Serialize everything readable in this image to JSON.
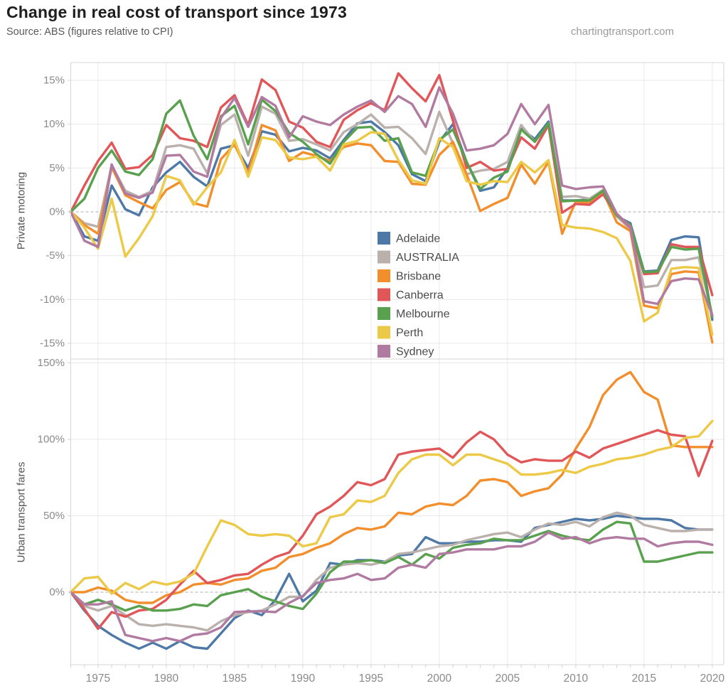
{
  "header": {
    "title": "Change in real cost of transport since 1973",
    "source": "Source: ABS (figures relative to CPI)",
    "watermark": "chartingtransport.com"
  },
  "palette": {
    "adelaide_blue": "#4e79a7",
    "australia_gray": "#bab0ac",
    "brisbane_orange": "#f28e2b",
    "canberra_red": "#e15759",
    "melbourne_green": "#59a14f",
    "perth_yellow": "#edc948",
    "sydney_purple": "#b07aa1",
    "grid": "#e8e8e8",
    "zero_line": "#bdbdbd",
    "border": "#d4d4d4",
    "tick_text": "#8a8a8a",
    "legend_text": "#4b4b4b"
  },
  "chart_data": [
    {
      "type": "line",
      "panel": "private-motoring",
      "ylabel": "Private motoring",
      "y_tick_labels": [
        "15%",
        "10%",
        "5%",
        "0%",
        "-5%",
        "-10%",
        "-15%"
      ],
      "y_tick_values": [
        15,
        10,
        5,
        0,
        -5,
        -10,
        -15
      ],
      "ylim": [
        -17,
        17
      ],
      "grid": true,
      "zero_line": "dashed",
      "legend_position": "inside-center-left",
      "x": [
        1973,
        1974,
        1975,
        1976,
        1977,
        1978,
        1979,
        1980,
        1981,
        1982,
        1983,
        1984,
        1985,
        1986,
        1987,
        1988,
        1989,
        1990,
        1991,
        1992,
        1993,
        1994,
        1995,
        1996,
        1997,
        1998,
        1999,
        2000,
        2001,
        2002,
        2003,
        2004,
        2005,
        2006,
        2007,
        2008,
        2009,
        2010,
        2011,
        2012,
        2013,
        2014,
        2015,
        2016,
        2017,
        2018,
        2019,
        2020
      ],
      "x_tick_labels": [
        "1975",
        "1980",
        "1985",
        "1990",
        "1995",
        "2000",
        "2005",
        "2010",
        "2015",
        "2020"
      ],
      "series": [
        {
          "name": "Adelaide",
          "color": "#4e79a7",
          "values": [
            0,
            -2.8,
            -3.3,
            3.0,
            0.3,
            -0.4,
            2.8,
            4.5,
            5.7,
            4.0,
            2.9,
            7.2,
            7.6,
            5.0,
            9.2,
            8.8,
            6.9,
            7.3,
            7.0,
            6.1,
            8.2,
            10.1,
            10.3,
            9.1,
            7.6,
            4.3,
            3.5,
            8.0,
            10.0,
            5.7,
            2.4,
            2.8,
            5.0,
            9.5,
            8.3,
            10.3,
            1.3,
            1.3,
            1.4,
            2.5,
            -0.5,
            -1.3,
            -6.8,
            -6.7,
            -3.2,
            -2.8,
            -2.9,
            -12.3
          ]
        },
        {
          "name": "AUSTRALIA",
          "color": "#bab0ac",
          "values": [
            0,
            -1.3,
            -1.7,
            5.3,
            2.4,
            1.7,
            2.4,
            7.4,
            7.6,
            7.2,
            4.4,
            9.9,
            11.1,
            6.4,
            12.0,
            11.2,
            8.1,
            8.3,
            7.7,
            7.0,
            9.1,
            10.0,
            11.1,
            9.6,
            9.7,
            8.4,
            6.6,
            11.4,
            7.8,
            4.3,
            4.7,
            4.9,
            5.7,
            9.9,
            8.0,
            10.0,
            1.7,
            1.8,
            1.5,
            2.5,
            -0.5,
            -2.0,
            -8.6,
            -8.4,
            -5.5,
            -5.5,
            -5.2,
            -11.8
          ]
        },
        {
          "name": "Brisbane",
          "color": "#f28e2b",
          "values": [
            0,
            -1.5,
            -2.5,
            5.1,
            1.9,
            1.1,
            0.4,
            2.5,
            3.4,
            1.0,
            0.6,
            6.0,
            7.7,
            4.4,
            9.9,
            9.3,
            5.8,
            6.8,
            6.4,
            5.8,
            7.4,
            7.8,
            7.6,
            5.8,
            5.7,
            3.2,
            3.1,
            6.5,
            8.0,
            4.3,
            0.1,
            0.9,
            1.6,
            5.4,
            3.2,
            5.7,
            -2.5,
            1.2,
            1.0,
            2.3,
            -1.2,
            -2.2,
            -10.7,
            -11.0,
            -7.1,
            -6.8,
            -6.9,
            -14.9
          ]
        },
        {
          "name": "Canberra",
          "color": "#e15759",
          "values": [
            0,
            3.0,
            5.8,
            7.9,
            4.9,
            5.1,
            6.5,
            9.9,
            8.4,
            8.1,
            7.4,
            11.9,
            13.3,
            9.9,
            15.1,
            13.9,
            10.3,
            9.6,
            8.0,
            7.4,
            10.5,
            11.6,
            12.4,
            11.6,
            15.8,
            14.1,
            12.6,
            15.6,
            10.4,
            5.0,
            5.7,
            4.7,
            4.9,
            8.5,
            7.2,
            9.9,
            -0.1,
            0.9,
            0.8,
            2.0,
            -0.3,
            -1.8,
            -7.1,
            -7.0,
            -3.7,
            -4.0,
            -4.0,
            -9.5
          ]
        },
        {
          "name": "Melbourne",
          "color": "#59a14f",
          "values": [
            0,
            1.5,
            5.0,
            7.0,
            4.6,
            4.2,
            6.0,
            11.2,
            12.7,
            8.7,
            6.0,
            10.9,
            12.1,
            7.7,
            12.8,
            11.5,
            9.0,
            8.0,
            6.6,
            5.5,
            8.0,
            9.6,
            9.7,
            8.1,
            8.4,
            4.5,
            4.1,
            8.2,
            9.4,
            5.7,
            2.6,
            3.9,
            4.6,
            9.4,
            8.0,
            10.1,
            1.2,
            1.3,
            1.3,
            2.4,
            -0.4,
            -1.5,
            -6.9,
            -6.8,
            -4.0,
            -4.3,
            -4.2,
            -12.0
          ]
        },
        {
          "name": "Perth",
          "color": "#edc948",
          "values": [
            0,
            -1.8,
            -4.2,
            1.5,
            -5.1,
            -3.0,
            -0.5,
            4.1,
            3.6,
            0.8,
            2.8,
            4.5,
            8.2,
            4.0,
            8.5,
            8.2,
            6.2,
            6.0,
            6.3,
            4.7,
            7.7,
            8.1,
            9.1,
            8.9,
            5.9,
            3.6,
            3.2,
            8.4,
            7.4,
            3.5,
            3.1,
            3.5,
            3.4,
            5.7,
            4.5,
            5.9,
            -1.5,
            -1.8,
            -1.9,
            -2.3,
            -3.0,
            -5.6,
            -12.5,
            -11.5,
            -6.5,
            -6.3,
            -6.4,
            -14.0
          ]
        },
        {
          "name": "Sydney",
          "color": "#b07aa1",
          "values": [
            0,
            -3.3,
            -4.0,
            5.4,
            2.1,
            1.6,
            2.2,
            6.4,
            6.5,
            4.6,
            4.0,
            10.7,
            13.0,
            9.7,
            13.1,
            12.1,
            8.5,
            10.9,
            10.3,
            9.9,
            11.1,
            12.0,
            12.7,
            11.4,
            13.2,
            12.3,
            9.7,
            14.2,
            11.2,
            7.0,
            7.2,
            7.6,
            8.9,
            12.3,
            10.0,
            12.2,
            3.0,
            2.6,
            2.8,
            2.9,
            -0.2,
            -1.7,
            -10.2,
            -10.5,
            -7.9,
            -7.6,
            -7.7,
            -11.8
          ]
        }
      ]
    },
    {
      "type": "line",
      "panel": "urban-transport-fares",
      "ylabel": "Urban transport fares",
      "y_tick_labels": [
        "150%",
        "100%",
        "50%",
        "0%"
      ],
      "y_tick_values": [
        150,
        100,
        50,
        0
      ],
      "ylim": [
        -47,
        152
      ],
      "grid": true,
      "zero_line": "dashed",
      "x": [
        1973,
        1974,
        1975,
        1976,
        1977,
        1978,
        1979,
        1980,
        1981,
        1982,
        1983,
        1984,
        1985,
        1986,
        1987,
        1988,
        1989,
        1990,
        1991,
        1992,
        1993,
        1994,
        1995,
        1996,
        1997,
        1998,
        1999,
        2000,
        2001,
        2002,
        2003,
        2004,
        2005,
        2006,
        2007,
        2008,
        2009,
        2010,
        2011,
        2012,
        2013,
        2014,
        2015,
        2016,
        2017,
        2018,
        2019,
        2020
      ],
      "x_tick_labels": [
        "1975",
        "1980",
        "1985",
        "1990",
        "1995",
        "2000",
        "2005",
        "2010",
        "2015",
        "2020"
      ],
      "series": [
        {
          "name": "Adelaide",
          "color": "#4e79a7",
          "values": [
            0,
            -12,
            -22,
            -28,
            -33,
            -37,
            -33,
            -37,
            -32,
            -36,
            -37,
            -27,
            -17,
            -12,
            -15,
            -5,
            12,
            -6,
            1,
            19,
            18,
            21,
            21,
            20,
            24,
            25,
            36,
            32,
            32,
            33,
            33,
            34,
            34,
            33,
            42,
            44,
            46,
            48,
            47,
            48,
            50,
            49,
            48,
            48,
            47,
            42,
            41,
            41
          ]
        },
        {
          "name": "AUSTRALIA",
          "color": "#bab0ac",
          "values": [
            0,
            -9,
            -12,
            -9,
            -15,
            -21,
            -22,
            -21,
            -22,
            -23,
            -25,
            -19,
            -15,
            -13,
            -12,
            -8,
            -3,
            -3,
            8,
            16,
            18,
            19,
            18,
            20,
            25,
            26,
            28,
            30,
            31,
            34,
            36,
            38,
            39,
            36,
            41,
            45,
            44,
            46,
            43,
            49,
            52,
            50,
            44,
            42,
            40,
            40,
            41,
            41
          ]
        },
        {
          "name": "Brisbane",
          "color": "#f28e2b",
          "values": [
            0,
            0,
            3,
            1,
            -5,
            -7,
            -7,
            -2,
            0,
            5,
            6,
            5,
            8,
            9,
            14,
            16,
            23,
            25,
            29,
            32,
            38,
            42,
            41,
            43,
            52,
            51,
            56,
            58,
            57,
            63,
            73,
            74,
            72,
            63,
            66,
            68,
            77,
            94,
            108,
            129,
            139,
            144,
            131,
            126,
            96,
            95,
            95,
            95
          ]
        },
        {
          "name": "Canberra",
          "color": "#e15759",
          "values": [
            0,
            -11,
            -24,
            -13,
            -16,
            -12,
            -11,
            -5,
            5,
            14,
            6,
            8,
            11,
            12,
            18,
            23,
            26,
            37,
            51,
            56,
            63,
            72,
            70,
            74,
            90,
            92,
            93,
            94,
            88,
            98,
            105,
            100,
            90,
            85,
            87,
            86,
            86,
            92,
            88,
            94,
            97,
            100,
            103,
            106,
            103,
            102,
            76,
            99
          ]
        },
        {
          "name": "Melbourne",
          "color": "#59a14f",
          "values": [
            0,
            -8,
            -5,
            -8,
            -12,
            -9,
            -12,
            -12,
            -11,
            -8,
            -9,
            -2,
            0,
            2,
            -3,
            -6,
            -9,
            -11,
            -1,
            13,
            20,
            20,
            21,
            19,
            23,
            18,
            25,
            22,
            29,
            31,
            32,
            35,
            34,
            34,
            37,
            40,
            37,
            35,
            34,
            41,
            46,
            45,
            20,
            20,
            22,
            24,
            26,
            26
          ]
        },
        {
          "name": "Perth",
          "color": "#edc948",
          "values": [
            0,
            9,
            10,
            -1,
            6,
            2,
            7,
            5,
            7,
            12,
            30,
            47,
            44,
            38,
            37,
            38,
            37,
            30,
            32,
            49,
            51,
            60,
            59,
            63,
            78,
            87,
            90,
            90,
            83,
            90,
            90,
            87,
            84,
            77,
            77,
            78,
            80,
            78,
            82,
            84,
            87,
            88,
            90,
            93,
            95,
            101,
            102,
            112
          ]
        },
        {
          "name": "Sydney",
          "color": "#b07aa1",
          "values": [
            0,
            -8,
            -8,
            -6,
            -28,
            -30,
            -32,
            -30,
            -32,
            -28,
            -27,
            -23,
            -13,
            -12.5,
            -12.5,
            -13,
            -7,
            -2.5,
            6,
            8,
            9,
            12,
            8,
            9,
            16,
            18,
            16,
            25,
            26,
            28,
            28,
            28,
            30,
            30,
            33,
            39,
            35,
            36,
            32,
            35,
            36,
            35,
            35,
            30,
            32,
            33,
            33,
            31
          ]
        }
      ]
    }
  ]
}
